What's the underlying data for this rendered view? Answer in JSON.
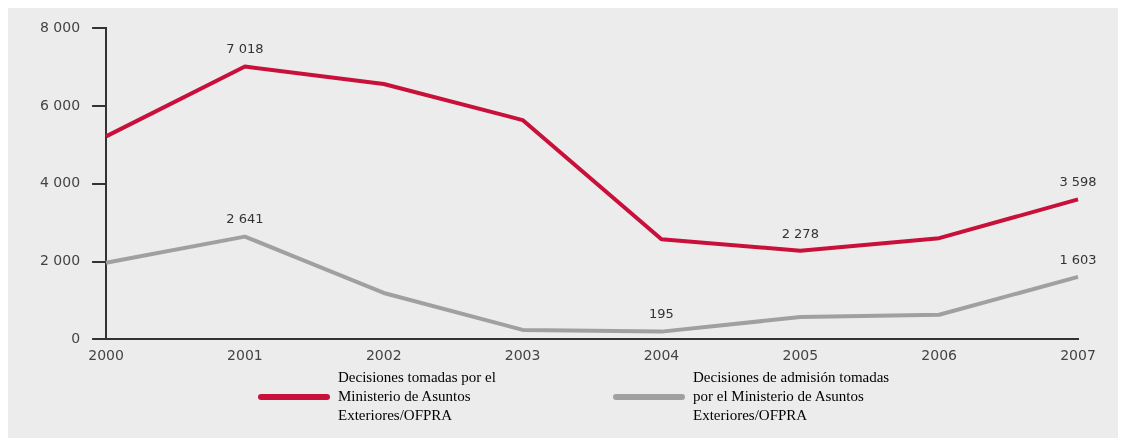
{
  "chart_data": {
    "type": "line",
    "categories": [
      "2000",
      "2001",
      "2002",
      "2003",
      "2004",
      "2005",
      "2006",
      "2007"
    ],
    "series": [
      {
        "name": "Decisiones tomadas por el Ministerio de Asuntos Exteriores/OFPRA",
        "color": "#c8103a",
        "values": [
          5220,
          7018,
          6570,
          5640,
          2570,
          2278,
          2600,
          3598
        ],
        "value_labels": [
          null,
          "7 018",
          null,
          null,
          null,
          "2 278",
          null,
          "3 598"
        ]
      },
      {
        "name": "Decisiones de admisión tomadas por el Ministerio de Asuntos Exteriores/OFPRA",
        "color": "#a0a0a0",
        "values": [
          1970,
          2641,
          1190,
          240,
          195,
          570,
          630,
          1603
        ],
        "value_labels": [
          null,
          "2 641",
          null,
          null,
          "195",
          null,
          null,
          "1 603"
        ]
      }
    ],
    "ylim": [
      0,
      8000
    ],
    "yticks": [
      0,
      {
        "value": 2000,
        "label": "2 000"
      },
      {
        "value": 4000,
        "label": "4 000"
      },
      {
        "value": 6000,
        "label": "6 000"
      },
      {
        "value": 8000,
        "label": "8 000"
      }
    ],
    "legend": "bottom",
    "marker": "none",
    "line_style": "solid"
  }
}
